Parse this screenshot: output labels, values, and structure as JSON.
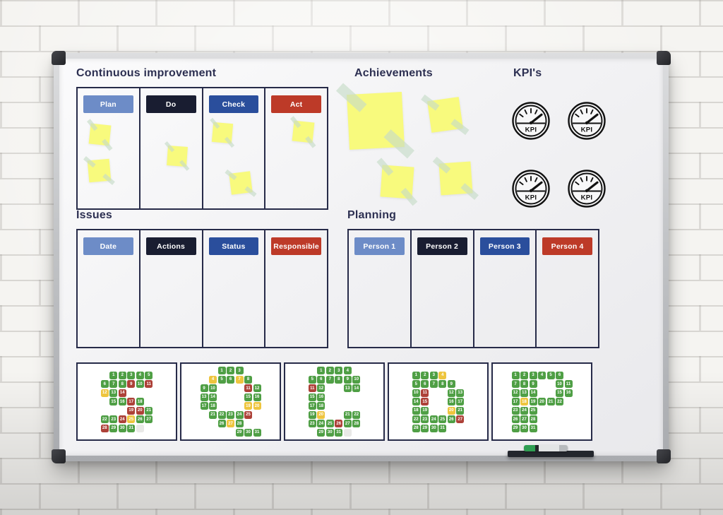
{
  "board": {
    "sections": {
      "continuous_improvement": {
        "title": "Continuous improvement",
        "columns": [
          {
            "label": "Plan",
            "color": "#6d8cc7"
          },
          {
            "label": "Do",
            "color": "#191d31"
          },
          {
            "label": "Check",
            "color": "#2a4e9c"
          },
          {
            "label": "Act",
            "color": "#bd3a28"
          }
        ],
        "sticky_notes_per_column": [
          2,
          1,
          2,
          1
        ]
      },
      "achievements": {
        "title": "Achievements",
        "sticky_note_count": 4
      },
      "kpis": {
        "title": "KPI's",
        "gauge_label": "KPI",
        "gauge_count": 4
      },
      "issues": {
        "title": "Issues",
        "columns": [
          {
            "label": "Date",
            "color": "#6d8cc7"
          },
          {
            "label": "Actions",
            "color": "#191d31"
          },
          {
            "label": "Status",
            "color": "#2a4e9c"
          },
          {
            "label": "Responsible",
            "color": "#bd3a28"
          }
        ]
      },
      "planning": {
        "title": "Planning",
        "columns": [
          {
            "label": "Person 1",
            "color": "#6d8cc7"
          },
          {
            "label": "Person 2",
            "color": "#191d31"
          },
          {
            "label": "Person 3",
            "color": "#2a4e9c"
          },
          {
            "label": "Person 4",
            "color": "#bd3a28"
          }
        ]
      }
    },
    "sqcdp": {
      "status_colors": {
        "g": "#4f9f45",
        "r": "#ad4138",
        "y": "#eec53e",
        "b": "#e9e9e7"
      },
      "letters": [
        {
          "letter": "S",
          "cols": 6,
          "rows": 7,
          "cells": [
            [
              1,
              2,
              1,
              "g"
            ],
            [
              1,
              3,
              2,
              "g"
            ],
            [
              1,
              4,
              3,
              "g"
            ],
            [
              1,
              5,
              4,
              "g"
            ],
            [
              1,
              6,
              5,
              "g"
            ],
            [
              2,
              1,
              6,
              "g"
            ],
            [
              2,
              2,
              7,
              "g"
            ],
            [
              2,
              3,
              8,
              "g"
            ],
            [
              2,
              4,
              9,
              "r"
            ],
            [
              2,
              5,
              10,
              "g"
            ],
            [
              2,
              6,
              11,
              "r"
            ],
            [
              3,
              1,
              12,
              "y"
            ],
            [
              3,
              2,
              13,
              "g"
            ],
            [
              3,
              3,
              14,
              "r"
            ],
            [
              4,
              2,
              15,
              "g"
            ],
            [
              4,
              3,
              16,
              "g"
            ],
            [
              4,
              4,
              17,
              "r"
            ],
            [
              4,
              5,
              18,
              "g"
            ],
            [
              5,
              4,
              19,
              "r"
            ],
            [
              5,
              5,
              20,
              "r"
            ],
            [
              5,
              6,
              21,
              "g"
            ],
            [
              6,
              1,
              22,
              "g"
            ],
            [
              6,
              2,
              23,
              "g"
            ],
            [
              6,
              3,
              24,
              "r"
            ],
            [
              6,
              4,
              25,
              "y"
            ],
            [
              6,
              5,
              26,
              "g"
            ],
            [
              6,
              6,
              27,
              "g"
            ],
            [
              7,
              1,
              28,
              "r"
            ],
            [
              7,
              2,
              29,
              "g"
            ],
            [
              7,
              3,
              30,
              "g"
            ],
            [
              7,
              4,
              31,
              "g"
            ],
            [
              7,
              5,
              null,
              "b"
            ]
          ]
        },
        {
          "letter": "Q",
          "cols": 7,
          "rows": 8,
          "cells": [
            [
              1,
              3,
              1,
              "g"
            ],
            [
              1,
              4,
              2,
              "g"
            ],
            [
              1,
              5,
              3,
              "g"
            ],
            [
              2,
              2,
              4,
              "y"
            ],
            [
              2,
              3,
              5,
              "g"
            ],
            [
              2,
              4,
              6,
              "g"
            ],
            [
              2,
              5,
              7,
              "y"
            ],
            [
              2,
              6,
              8,
              "g"
            ],
            [
              3,
              1,
              9,
              "g"
            ],
            [
              3,
              2,
              10,
              "g"
            ],
            [
              3,
              6,
              11,
              "r"
            ],
            [
              3,
              7,
              12,
              "g"
            ],
            [
              4,
              1,
              13,
              "g"
            ],
            [
              4,
              2,
              14,
              "g"
            ],
            [
              4,
              6,
              15,
              "g"
            ],
            [
              4,
              7,
              16,
              "g"
            ],
            [
              5,
              1,
              17,
              "g"
            ],
            [
              5,
              2,
              18,
              "g"
            ],
            [
              5,
              6,
              19,
              "y"
            ],
            [
              5,
              7,
              20,
              "y"
            ],
            [
              6,
              2,
              21,
              "g"
            ],
            [
              6,
              3,
              22,
              "g"
            ],
            [
              6,
              4,
              23,
              "g"
            ],
            [
              6,
              5,
              24,
              "g"
            ],
            [
              6,
              6,
              25,
              "r"
            ],
            [
              7,
              3,
              26,
              "g"
            ],
            [
              7,
              4,
              27,
              "y"
            ],
            [
              7,
              5,
              28,
              "g"
            ],
            [
              8,
              5,
              29,
              "g"
            ],
            [
              8,
              6,
              30,
              "g"
            ],
            [
              8,
              7,
              31,
              "g"
            ]
          ]
        },
        {
          "letter": "C",
          "cols": 6,
          "rows": 8,
          "cells": [
            [
              1,
              2,
              1,
              "g"
            ],
            [
              1,
              3,
              2,
              "g"
            ],
            [
              1,
              4,
              3,
              "g"
            ],
            [
              1,
              5,
              4,
              "g"
            ],
            [
              2,
              1,
              5,
              "g"
            ],
            [
              2,
              2,
              6,
              "g"
            ],
            [
              2,
              3,
              7,
              "g"
            ],
            [
              2,
              4,
              8,
              "g"
            ],
            [
              2,
              5,
              9,
              "g"
            ],
            [
              2,
              6,
              10,
              "g"
            ],
            [
              3,
              1,
              11,
              "r"
            ],
            [
              3,
              2,
              12,
              "g"
            ],
            [
              3,
              5,
              13,
              "g"
            ],
            [
              3,
              6,
              14,
              "g"
            ],
            [
              4,
              1,
              15,
              "g"
            ],
            [
              4,
              2,
              16,
              "g"
            ],
            [
              5,
              1,
              17,
              "g"
            ],
            [
              5,
              2,
              18,
              "g"
            ],
            [
              6,
              1,
              19,
              "g"
            ],
            [
              6,
              2,
              20,
              "y"
            ],
            [
              6,
              5,
              21,
              "g"
            ],
            [
              6,
              6,
              22,
              "g"
            ],
            [
              7,
              1,
              23,
              "g"
            ],
            [
              7,
              2,
              24,
              "g"
            ],
            [
              7,
              3,
              25,
              "g"
            ],
            [
              7,
              4,
              26,
              "r"
            ],
            [
              7,
              5,
              27,
              "g"
            ],
            [
              7,
              6,
              28,
              "g"
            ],
            [
              8,
              2,
              29,
              "g"
            ],
            [
              8,
              3,
              30,
              "g"
            ],
            [
              8,
              4,
              31,
              "g"
            ],
            [
              8,
              5,
              null,
              "b"
            ]
          ]
        },
        {
          "letter": "D",
          "cols": 6,
          "rows": 7,
          "cells": [
            [
              1,
              1,
              1,
              "g"
            ],
            [
              1,
              2,
              2,
              "g"
            ],
            [
              1,
              3,
              3,
              "g"
            ],
            [
              1,
              4,
              4,
              "y"
            ],
            [
              2,
              1,
              5,
              "g"
            ],
            [
              2,
              2,
              6,
              "g"
            ],
            [
              2,
              3,
              7,
              "g"
            ],
            [
              2,
              4,
              8,
              "g"
            ],
            [
              2,
              5,
              9,
              "g"
            ],
            [
              3,
              1,
              10,
              "g"
            ],
            [
              3,
              2,
              11,
              "r"
            ],
            [
              3,
              5,
              12,
              "g"
            ],
            [
              3,
              6,
              13,
              "g"
            ],
            [
              4,
              1,
              14,
              "g"
            ],
            [
              4,
              2,
              15,
              "r"
            ],
            [
              4,
              5,
              16,
              "g"
            ],
            [
              4,
              6,
              17,
              "g"
            ],
            [
              5,
              1,
              18,
              "g"
            ],
            [
              5,
              2,
              19,
              "g"
            ],
            [
              5,
              5,
              20,
              "y"
            ],
            [
              5,
              6,
              21,
              "g"
            ],
            [
              6,
              1,
              22,
              "g"
            ],
            [
              6,
              2,
              23,
              "g"
            ],
            [
              6,
              3,
              24,
              "g"
            ],
            [
              6,
              4,
              25,
              "g"
            ],
            [
              6,
              5,
              26,
              "g"
            ],
            [
              6,
              6,
              27,
              "r"
            ],
            [
              7,
              1,
              28,
              "g"
            ],
            [
              7,
              2,
              29,
              "g"
            ],
            [
              7,
              3,
              30,
              "g"
            ],
            [
              7,
              4,
              31,
              "g"
            ]
          ]
        },
        {
          "letter": "P",
          "cols": 7,
          "rows": 7,
          "cells": [
            [
              1,
              1,
              1,
              "g"
            ],
            [
              1,
              2,
              2,
              "g"
            ],
            [
              1,
              3,
              3,
              "g"
            ],
            [
              1,
              4,
              4,
              "g"
            ],
            [
              1,
              5,
              5,
              "g"
            ],
            [
              1,
              6,
              6,
              "g"
            ],
            [
              2,
              1,
              7,
              "g"
            ],
            [
              2,
              2,
              8,
              "g"
            ],
            [
              2,
              3,
              9,
              "g"
            ],
            [
              2,
              6,
              10,
              "g"
            ],
            [
              2,
              7,
              11,
              "g"
            ],
            [
              3,
              1,
              12,
              "g"
            ],
            [
              3,
              2,
              13,
              "g"
            ],
            [
              3,
              3,
              14,
              "g"
            ],
            [
              3,
              6,
              15,
              "g"
            ],
            [
              3,
              7,
              16,
              "g"
            ],
            [
              4,
              1,
              17,
              "g"
            ],
            [
              4,
              2,
              18,
              "y"
            ],
            [
              4,
              3,
              19,
              "g"
            ],
            [
              4,
              4,
              20,
              "g"
            ],
            [
              4,
              5,
              21,
              "g"
            ],
            [
              4,
              6,
              22,
              "g"
            ],
            [
              5,
              1,
              23,
              "g"
            ],
            [
              5,
              2,
              24,
              "g"
            ],
            [
              5,
              3,
              25,
              "g"
            ],
            [
              6,
              1,
              26,
              "g"
            ],
            [
              6,
              2,
              27,
              "g"
            ],
            [
              6,
              3,
              28,
              "g"
            ],
            [
              7,
              1,
              29,
              "g"
            ],
            [
              7,
              2,
              30,
              "g"
            ],
            [
              7,
              3,
              31,
              "g"
            ]
          ]
        }
      ]
    }
  }
}
